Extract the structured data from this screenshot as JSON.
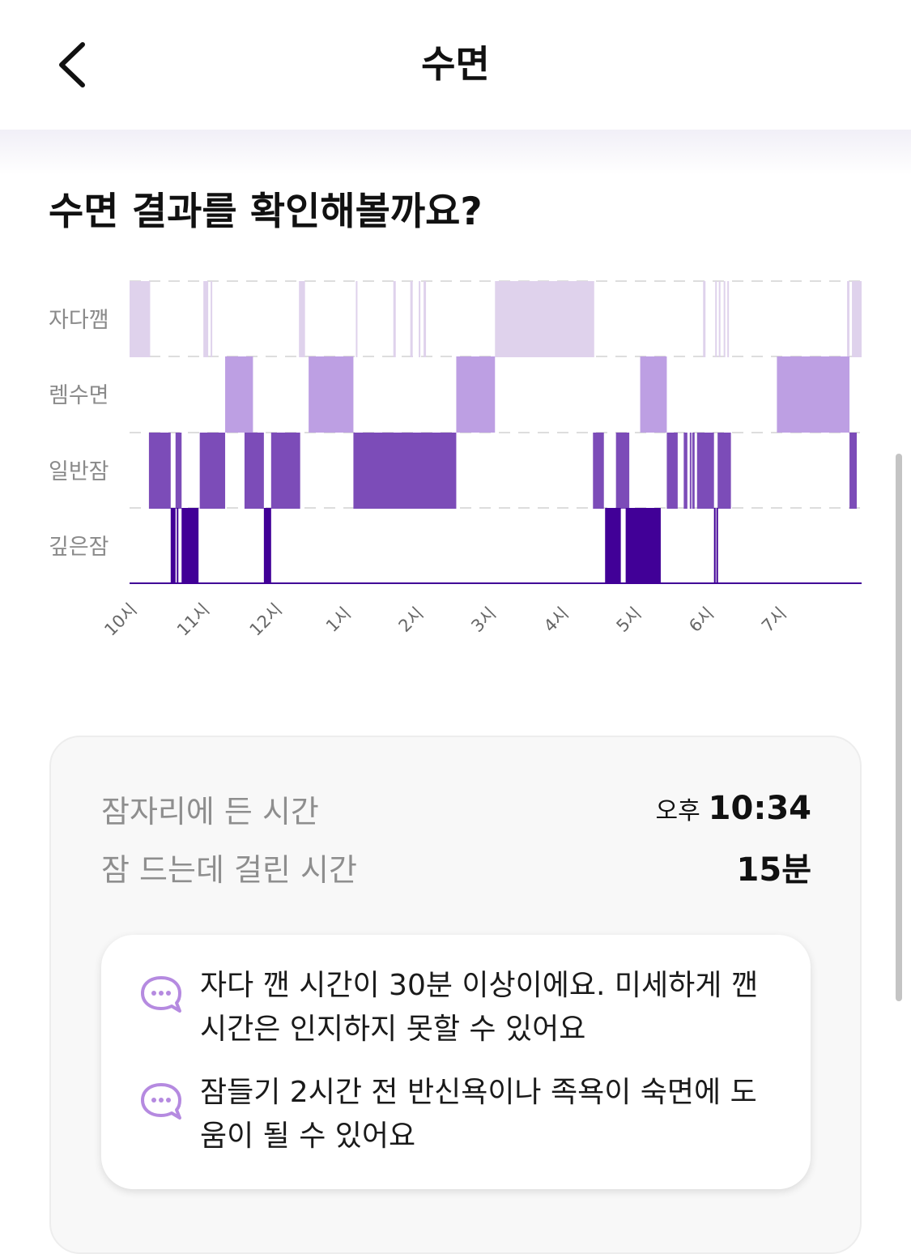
{
  "header": {
    "title": "수면"
  },
  "headline": "수면 결과를 확인해볼까요?",
  "chart_data": {
    "type": "hypnogram",
    "stages": [
      "자다깸",
      "렘수면",
      "일반잠",
      "깊은잠"
    ],
    "x_tick_labels": [
      "10시",
      "11시",
      "12시",
      "1시",
      "2시",
      "3시",
      "4시",
      "5시",
      "6시",
      "7시"
    ],
    "x_axis_start": "22:00",
    "x_axis_end": "08:05",
    "colors": {
      "자다깸": "#dfd2ec",
      "렘수면": "#bd9fe3",
      "일반잠": "#7c4cb8",
      "깊은잠": "#410097"
    },
    "segments": [
      {
        "stage": "자다깸",
        "start": "22:00",
        "end": "22:17"
      },
      {
        "stage": "자다깸",
        "start": "23:01",
        "end": "23:05"
      },
      {
        "stage": "자다깸",
        "start": "23:07",
        "end": "23:08"
      },
      {
        "stage": "자다깸",
        "start": "00:20",
        "end": "00:25"
      },
      {
        "stage": "자다깸",
        "start": "01:07",
        "end": "01:08"
      },
      {
        "stage": "자다깸",
        "start": "01:38",
        "end": "01:40"
      },
      {
        "stage": "자다깸",
        "start": "01:52",
        "end": "01:54"
      },
      {
        "stage": "자다깸",
        "start": "01:59",
        "end": "02:00"
      },
      {
        "stage": "자다깸",
        "start": "02:03",
        "end": "02:05"
      },
      {
        "stage": "자다깸",
        "start": "03:02",
        "end": "04:24"
      },
      {
        "stage": "자다깸",
        "start": "05:54",
        "end": "05:56"
      },
      {
        "stage": "자다깸",
        "start": "06:04",
        "end": "06:05"
      },
      {
        "stage": "자다깸",
        "start": "06:07",
        "end": "06:08"
      },
      {
        "stage": "자다깸",
        "start": "06:11",
        "end": "06:12"
      },
      {
        "stage": "자다깸",
        "start": "06:14",
        "end": "06:15"
      },
      {
        "stage": "자다깸",
        "start": "07:53",
        "end": "07:55"
      },
      {
        "stage": "자다깸",
        "start": "07:57",
        "end": "08:05"
      },
      {
        "stage": "렘수면",
        "start": "23:19",
        "end": "23:42"
      },
      {
        "stage": "렘수면",
        "start": "00:28",
        "end": "01:05"
      },
      {
        "stage": "렘수면",
        "start": "02:30",
        "end": "03:02"
      },
      {
        "stage": "렘수면",
        "start": "05:02",
        "end": "05:24"
      },
      {
        "stage": "렘수면",
        "start": "06:55",
        "end": "07:55"
      },
      {
        "stage": "일반잠",
        "start": "22:16",
        "end": "22:34"
      },
      {
        "stage": "일반잠",
        "start": "22:38",
        "end": "22:43"
      },
      {
        "stage": "일반잠",
        "start": "22:58",
        "end": "23:19"
      },
      {
        "stage": "일반잠",
        "start": "23:35",
        "end": "23:51"
      },
      {
        "stage": "일반잠",
        "start": "23:57",
        "end": "00:21"
      },
      {
        "stage": "일반잠",
        "start": "01:05",
        "end": "02:30"
      },
      {
        "stage": "일반잠",
        "start": "04:23",
        "end": "04:32"
      },
      {
        "stage": "일반잠",
        "start": "04:42",
        "end": "04:53"
      },
      {
        "stage": "일반잠",
        "start": "05:24",
        "end": "05:33"
      },
      {
        "stage": "일반잠",
        "start": "05:38",
        "end": "05:41"
      },
      {
        "stage": "일반잠",
        "start": "05:43",
        "end": "05:44"
      },
      {
        "stage": "일반잠",
        "start": "05:45",
        "end": "05:47"
      },
      {
        "stage": "일반잠",
        "start": "05:49",
        "end": "06:03"
      },
      {
        "stage": "일반잠",
        "start": "06:06",
        "end": "06:17"
      },
      {
        "stage": "일반잠",
        "start": "07:55",
        "end": "08:01"
      },
      {
        "stage": "깊은잠",
        "start": "22:34",
        "end": "22:38"
      },
      {
        "stage": "깊은잠",
        "start": "22:39",
        "end": "22:40"
      },
      {
        "stage": "깊은잠",
        "start": "22:43",
        "end": "22:57"
      },
      {
        "stage": "깊은잠",
        "start": "23:51",
        "end": "23:57"
      },
      {
        "stage": "깊은잠",
        "start": "04:33",
        "end": "04:46"
      },
      {
        "stage": "깊은잠",
        "start": "04:50",
        "end": "05:19"
      },
      {
        "stage": "깊은잠",
        "start": "06:03",
        "end": "06:04"
      },
      {
        "stage": "깊은잠",
        "start": "06:05",
        "end": "06:06"
      }
    ]
  },
  "summary": {
    "bedtime_label": "잠자리에 든 시간",
    "bedtime_prefix": "오후",
    "bedtime_value": "10:34",
    "latency_label": "잠 드는데 걸린 시간",
    "latency_value": "15분"
  },
  "tips": [
    {
      "text": "자다 깬 시간이 30분 이상이에요. 미세하게 깬 시간은 인지하지 못할 수 있어요",
      "icon": "chat-bubble-icon"
    },
    {
      "text": "잠들기 2시간 전 반신욕이나 족욕이 숙면에 도움이 될 수 있어요",
      "icon": "chat-bubble-icon"
    }
  ],
  "tip_icon_color": "#b58ae0"
}
